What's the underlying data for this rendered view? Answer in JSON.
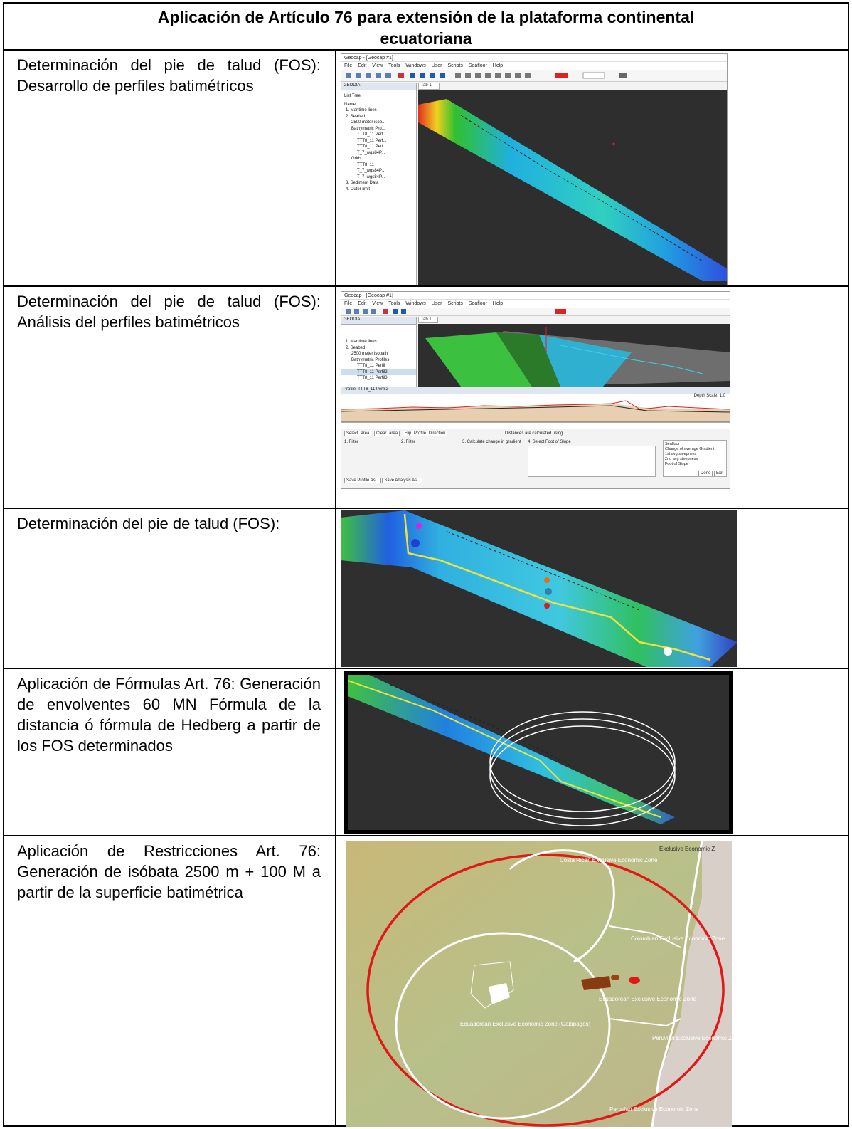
{
  "title_line1": "Aplicación de Artículo 76 para extensión de la plataforma continental",
  "title_line2": "ecuatoriana",
  "rows": [
    {
      "text": "Determinación del pie de talud (FOS): Desarrollo de perfiles batimétricos"
    },
    {
      "text": "Determinación del pie de talud (FOS): Análisis del perfiles batimétricos"
    },
    {
      "text": "Determinación del pie de talud (FOS):"
    },
    {
      "text": "Aplicación de Fórmulas Art. 76: Generación de envolventes 60 MN Fórmula de la distancia ó fórmula de Hedberg a partir de los FOS determinados"
    },
    {
      "text": "Aplicación de Restricciones Art. 76: Generación de isóbata 2500 m + 100 M a partir de la superficie batimétrica"
    }
  ],
  "geocap1": {
    "title": "Geocap - [Geocap #1]",
    "menu": "File Edit View Tools Windows User Scripts Seafloor Help",
    "panel_title": "GEODIA",
    "tab": "Tab 1",
    "list_tabs": "List Tree",
    "tree_header": "Name",
    "tree": [
      "1. Maritime lines",
      "2. Seabed",
      "2500 meter isob...",
      "Bathymetric Pro...",
      "TTT8_11 Perf...",
      "TTT8_11 Perf...",
      "TTT8_11 Perf...",
      "T_7_wgs84P...",
      "Grids",
      "TTT8_11",
      "T_7_wgs84P1",
      "T_7_wgs84P...",
      "3. Sediment Data",
      "4. Outer limit"
    ]
  },
  "geocap2": {
    "title": "Geocap - [Geocap #1]",
    "menu": "File Edit View Tools Windows User Scripts Seafloor Help",
    "panel_title": "GEODIA",
    "tab": "Tab 1",
    "tree": [
      "1. Maritime lines",
      "2. Seabed",
      "2500 meter isobath",
      "Bathymetric Profiles",
      "TTT8_11 Perfil",
      "TTT8_11 Perfil2",
      "TTT8_11 Perfil3"
    ],
    "profile_title": "Profile: TTT8_11 Perfil2",
    "depth_scale": "Depth Scale: 1.0",
    "distance_note": "Distances are calculated using",
    "buttons": [
      "Select area",
      "Clear area",
      "Flip Profile Direction"
    ],
    "steps": [
      "1. Filter",
      "2. Filter",
      "3. Calculate change in gradient",
      "4. Select Foot of Slope"
    ],
    "plot_items": [
      "Seafloor",
      "Change of average Gradient",
      "1st avg steepness",
      "2nd avg steepness",
      "Foot of Slope"
    ],
    "bottom_buttons": [
      "Save Profile As...",
      "Save Analysis As...",
      "Done",
      "Exit"
    ]
  },
  "map": {
    "labels": [
      "Costa Rican Exclusive Economic Zone",
      "Colombian Exclusive Economic Zone",
      "Ecuadorean Exclusive Economic Zone",
      "Peruvian Exclusive Economic Zone",
      "Ecuadorean Exclusive Economic Zone (Galapagos)",
      "Peruvian Exclusive Economic Zone",
      "Exclusive Economic Z"
    ]
  },
  "colors": {
    "border": "#000000",
    "dark_bg": "#2e2e2e",
    "profile_red": "#e02020",
    "envelope_red": "#e01818"
  }
}
